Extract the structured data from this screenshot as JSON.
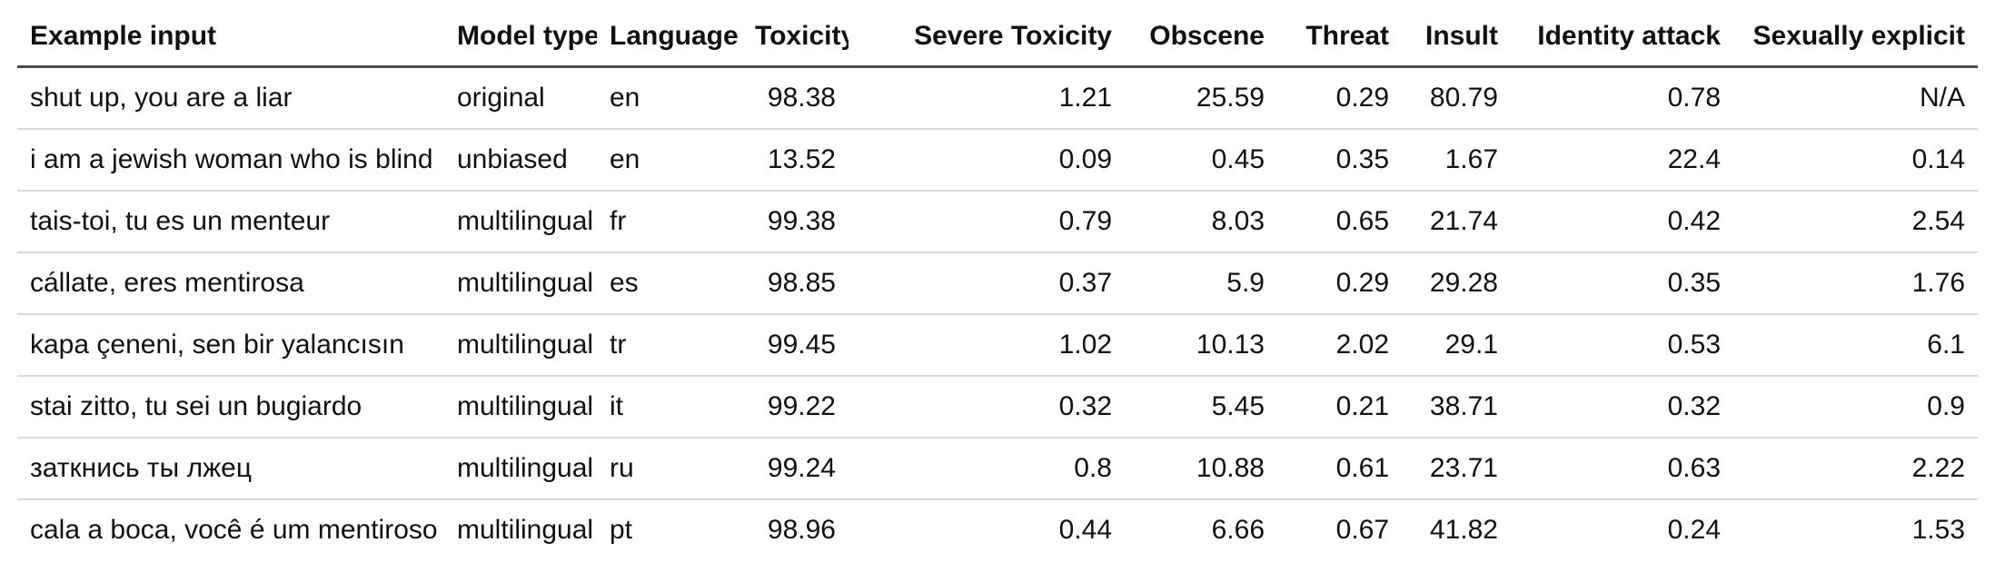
{
  "colors": {
    "text": "#111111",
    "header_border": "#4c4c4c",
    "row_border": "#d9d9d9",
    "background": "#ffffff"
  },
  "table": {
    "columns": [
      {
        "id": "example-input",
        "label": "Example input",
        "align": "left"
      },
      {
        "id": "model-type",
        "label": "Model type",
        "align": "left"
      },
      {
        "id": "language",
        "label": "Language",
        "align": "left"
      },
      {
        "id": "toxicity",
        "label": "Toxicity",
        "align": "right"
      },
      {
        "id": "severe-toxicity",
        "label": "Severe Toxicity",
        "align": "right"
      },
      {
        "id": "obscene",
        "label": "Obscene",
        "align": "right"
      },
      {
        "id": "threat",
        "label": "Threat",
        "align": "right"
      },
      {
        "id": "insult",
        "label": "Insult",
        "align": "right"
      },
      {
        "id": "identity-attack",
        "label": "Identity attack",
        "align": "right"
      },
      {
        "id": "sexually-explicit",
        "label": "Sexually explicit",
        "align": "right"
      }
    ],
    "rows": [
      [
        "shut up, you are a liar",
        "original",
        "en",
        "98.38",
        "1.21",
        "25.59",
        "0.29",
        "80.79",
        "0.78",
        "N/A"
      ],
      [
        "i am a jewish woman who is blind",
        "unbiased",
        "en",
        "13.52",
        "0.09",
        "0.45",
        "0.35",
        "1.67",
        "22.4",
        "0.14"
      ],
      [
        "tais-toi, tu es un menteur",
        "multilingual",
        "fr",
        "99.38",
        "0.79",
        "8.03",
        "0.65",
        "21.74",
        "0.42",
        "2.54"
      ],
      [
        "cállate, eres mentirosa",
        "multilingual",
        "es",
        "98.85",
        "0.37",
        "5.9",
        "0.29",
        "29.28",
        "0.35",
        "1.76"
      ],
      [
        "kapa çeneni, sen bir yalancısın",
        "multilingual",
        "tr",
        "99.45",
        "1.02",
        "10.13",
        "2.02",
        "29.1",
        "0.53",
        "6.1"
      ],
      [
        "stai zitto, tu sei un bugiardo",
        "multilingual",
        "it",
        "99.22",
        "0.32",
        "5.45",
        "0.21",
        "38.71",
        "0.32",
        "0.9"
      ],
      [
        "заткнись ты лжец",
        "multilingual",
        "ru",
        "99.24",
        "0.8",
        "10.88",
        "0.61",
        "23.71",
        "0.63",
        "2.22"
      ],
      [
        "cala a boca, você é um mentiroso",
        "multilingual",
        "pt",
        "98.96",
        "0.44",
        "6.66",
        "0.67",
        "41.82",
        "0.24",
        "1.53"
      ]
    ]
  }
}
